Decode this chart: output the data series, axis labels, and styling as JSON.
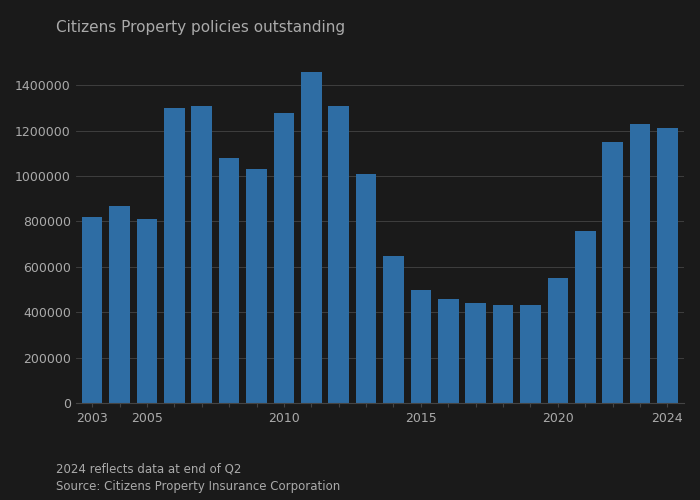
{
  "years": [
    2003,
    2004,
    2005,
    2006,
    2007,
    2008,
    2009,
    2010,
    2011,
    2012,
    2013,
    2014,
    2015,
    2016,
    2017,
    2018,
    2019,
    2020,
    2021,
    2022,
    2023,
    2024
  ],
  "values": [
    820000,
    870000,
    810000,
    1300000,
    1310000,
    1080000,
    1030000,
    1280000,
    1460000,
    1310000,
    1010000,
    650000,
    500000,
    460000,
    440000,
    430000,
    430000,
    550000,
    760000,
    1150000,
    1230000,
    1210000
  ],
  "bar_color": "#2e6da4",
  "title": "Citizens Property policies outstanding",
  "ylim": [
    0,
    1600000
  ],
  "yticks": [
    0,
    200000,
    400000,
    600000,
    800000,
    1000000,
    1200000,
    1400000
  ],
  "xtick_labels": [
    "2003",
    "",
    "2005",
    "",
    "",
    "",
    "",
    "2010",
    "",
    "",
    "",
    "",
    "2015",
    "",
    "",
    "",
    "",
    "2020",
    "",
    "",
    "",
    "2024"
  ],
  "footnote1": "2024 reflects data at end of Q2",
  "footnote2": "Source: Citizens Property Insurance Corporation",
  "background_color": "#1a1a1a",
  "plot_bg_color": "#1a1a1a",
  "grid_color": "#444444",
  "text_color": "#aaaaaa",
  "title_color": "#aaaaaa",
  "title_fontsize": 11,
  "tick_fontsize": 9,
  "footnote_fontsize": 8.5
}
